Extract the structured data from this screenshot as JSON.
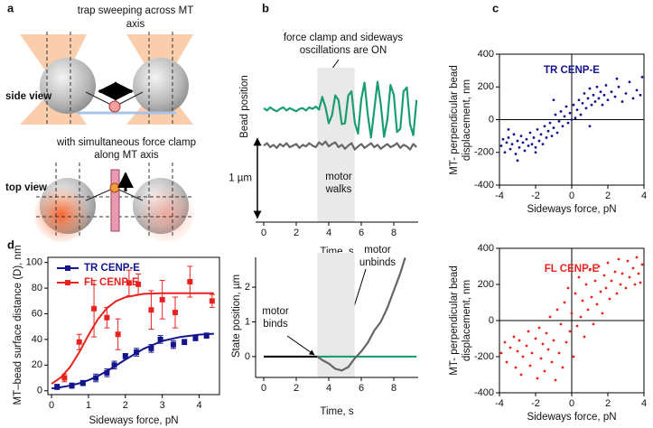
{
  "diagram": {
    "panel_label": "a",
    "caption_top": [
      "trap sweeping across MT",
      "axis"
    ],
    "side_label": "side view",
    "caption_mid": [
      "with simultaneous force clamp",
      "along MT axis"
    ],
    "top_label": "top view"
  },
  "chart_data": [
    {
      "type": "line",
      "panel_label": "b",
      "ylabel": "Bead position",
      "xlabel": "Time, s",
      "annotations": [
        [
          "force clamp and sideways",
          "oscillations are ON"
        ],
        [
          "motor",
          "walks"
        ]
      ],
      "x": [
        0,
        0.2,
        0.4,
        0.6,
        0.8,
        1,
        1.2,
        1.4,
        1.6,
        1.8,
        2,
        2.2,
        2.4,
        2.6,
        2.8,
        3,
        3.2,
        3.4,
        3.6,
        3.8,
        4,
        4.2,
        4.4,
        4.6,
        4.8,
        5,
        5.2,
        5.4,
        5.6,
        5.8,
        6,
        6.2,
        6.4,
        6.6,
        6.8,
        7,
        7.2,
        7.4,
        7.6,
        7.8,
        8,
        8.2,
        8.4,
        8.6,
        8.8,
        9,
        9.2,
        9.4
      ],
      "series": [
        {
          "color": "#1a9e6e",
          "values": [
            0.02,
            -0.01,
            0.03,
            0,
            -0.02,
            0.01,
            0.03,
            -0.01,
            0.02,
            0,
            -0.02,
            0.01,
            0.02,
            -0.01,
            0.03,
            0.01,
            0.04,
            0,
            0.16,
            0.03,
            -0.17,
            -0.07,
            0.18,
            0.12,
            -0.18,
            -0.17,
            0.18,
            0.23,
            -0.16,
            -0.3,
            0.13,
            0.34,
            -0.06,
            -0.35,
            0,
            0.35,
            0.07,
            -0.34,
            -0.13,
            0.31,
            0.19,
            -0.28,
            -0.24,
            0.23,
            0.28,
            -0.18,
            -0.32,
            0.12
          ]
        },
        {
          "color": "#666666",
          "values": [
            -0.45,
            -0.42,
            -0.47,
            -0.44,
            -0.48,
            -0.43,
            -0.46,
            -0.42,
            -0.47,
            -0.45,
            -0.43,
            -0.48,
            -0.44,
            -0.46,
            -0.42,
            -0.45,
            -0.47,
            -0.41,
            -0.44,
            -0.4,
            -0.46,
            -0.43,
            -0.41,
            -0.47,
            -0.44,
            -0.49,
            -0.45,
            -0.42,
            -0.5,
            -0.46,
            -0.43,
            -0.48,
            -0.45,
            -0.42,
            -0.47,
            -0.44,
            -0.49,
            -0.46,
            -0.43,
            -0.47,
            -0.45,
            -0.42,
            -0.48,
            -0.44,
            -0.46,
            -0.5,
            -0.43,
            -0.47
          ]
        }
      ],
      "xlim": [
        -0.5,
        9.5
      ],
      "xticks": [
        0,
        2,
        4,
        6,
        8
      ],
      "ylim": [
        -1.41,
        0.47
      ],
      "highlight_x": [
        3.3,
        5.6
      ],
      "scale_bar": {
        "value": 1,
        "label": "1 µm"
      },
      "frame": "bottom"
    },
    {
      "type": "line",
      "ylabel": "State position, µm",
      "xlabel": "Time, s",
      "annotations": [
        [
          "motor",
          "binds"
        ],
        [
          "motor",
          "unbinds"
        ]
      ],
      "series": [
        {
          "color": "#000000",
          "x": [
            0,
            3.3
          ],
          "values": [
            0,
            0
          ]
        },
        {
          "color": "#1a9e6e",
          "x": [
            3.3,
            9.4
          ],
          "values": [
            0,
            0
          ]
        },
        {
          "color": "#666666",
          "x": [
            3.3,
            3.6,
            4.0,
            4.4,
            4.8,
            5.2,
            5.6,
            6.0,
            6.4,
            6.8,
            7.2,
            7.6,
            8.0,
            8.4,
            8.7
          ],
          "values": [
            0,
            -0.1,
            -0.2,
            -0.35,
            -0.4,
            -0.3,
            -0.05,
            0.15,
            0.4,
            0.75,
            1.0,
            1.4,
            1.9,
            2.4,
            2.85
          ]
        }
      ],
      "xlim": [
        -0.5,
        9.5
      ],
      "xticks": [
        0,
        2,
        4,
        6,
        8
      ],
      "ylim": [
        -0.6,
        2.86
      ],
      "yticks": [
        0,
        1,
        2
      ],
      "highlight_x": [
        3.3,
        5.6
      ],
      "frame": "axes"
    },
    {
      "type": "scatter",
      "panel_label": "c",
      "title": "TR CENP-E",
      "ylabel": [
        "MT- perpendicular bead",
        "displacement, nm"
      ],
      "xlabel": "Sideways force, pN",
      "series": [
        {
          "color": "#14148c",
          "x": [
            -3.9,
            -3.8,
            -3.7,
            -3.6,
            -3.5,
            -3.4,
            -3.3,
            -3.2,
            -3.1,
            -3.0,
            -2.9,
            -2.8,
            -2.7,
            -2.6,
            -2.5,
            -2.4,
            -2.3,
            -2.2,
            -2.1,
            -2.0,
            -1.9,
            -1.8,
            -1.7,
            -1.6,
            -1.5,
            -1.4,
            -1.3,
            -1.2,
            -1.1,
            -1.0,
            -0.9,
            -0.8,
            -0.7,
            -0.6,
            -0.5,
            -0.4,
            -0.3,
            -0.2,
            -0.1,
            0.0,
            0.1,
            0.2,
            0.3,
            0.4,
            0.5,
            0.6,
            0.7,
            0.8,
            0.9,
            1.0,
            1.1,
            1.2,
            1.3,
            1.4,
            1.5,
            1.6,
            1.7,
            1.8,
            1.9,
            2.0,
            2.2,
            2.4,
            2.6,
            2.8,
            3.0,
            3.2,
            3.4,
            3.6,
            3.8,
            3.9,
            -3.0,
            -2.0,
            1.0,
            -1.0,
            2.5,
            -3.5
          ],
          "values": [
            -160,
            -120,
            -200,
            -140,
            -110,
            -180,
            -150,
            -90,
            -210,
            -130,
            -170,
            -100,
            -140,
            -190,
            -120,
            -160,
            -80,
            -150,
            -110,
            -170,
            -60,
            -130,
            -90,
            -150,
            -40,
            -110,
            -70,
            -20,
            -100,
            -50,
            30,
            -80,
            -10,
            50,
            -40,
            20,
            80,
            -20,
            40,
            0,
            90,
            10,
            60,
            120,
            30,
            100,
            160,
            70,
            130,
            190,
            90,
            150,
            110,
            200,
            130,
            170,
            90,
            150,
            210,
            120,
            170,
            140,
            200,
            110,
            160,
            230,
            130,
            180,
            150,
            260,
            -250,
            -200,
            -40,
            120,
            250,
            -60
          ]
        }
      ],
      "xlim": [
        -4,
        4
      ],
      "xticks": [
        -4,
        -2,
        0,
        2,
        4
      ],
      "ylim": [
        -400,
        400
      ],
      "yticks": [
        -400,
        -200,
        0,
        200,
        400
      ],
      "frame": "box",
      "zero_lines": true
    },
    {
      "type": "scatter",
      "title": "FL CENP-E",
      "ylabel": [
        "MT- perpendicular bead",
        "displacement, nm"
      ],
      "xlabel": "Sideways force, pN",
      "series": [
        {
          "color": "#e8231f",
          "x": [
            -3.9,
            -3.7,
            -3.6,
            -3.4,
            -3.2,
            -3.1,
            -3.0,
            -2.9,
            -2.8,
            -2.7,
            -2.5,
            -2.4,
            -2.3,
            -2.2,
            -2.0,
            -1.9,
            -1.8,
            -1.7,
            -1.6,
            -1.5,
            -1.4,
            -1.3,
            -1.2,
            -1.1,
            -1.0,
            -0.9,
            -0.8,
            -0.7,
            -0.6,
            -0.5,
            -0.4,
            -0.3,
            -0.2,
            -0.1,
            0.0,
            0.1,
            0.2,
            0.3,
            0.4,
            0.5,
            0.6,
            0.7,
            0.8,
            0.9,
            1.0,
            1.1,
            1.2,
            1.3,
            1.4,
            1.5,
            1.6,
            1.7,
            1.8,
            1.9,
            2.0,
            2.1,
            2.2,
            2.4,
            2.5,
            2.6,
            2.7,
            2.8,
            3.0,
            3.1,
            3.2,
            3.4,
            3.5,
            3.6,
            3.7,
            3.8,
            3.9
          ],
          "values": [
            -180,
            -120,
            -230,
            -150,
            -90,
            -260,
            -170,
            -110,
            -300,
            -200,
            -140,
            -60,
            -250,
            -180,
            -100,
            -320,
            -40,
            -210,
            -130,
            -280,
            -70,
            -160,
            20,
            -230,
            -110,
            -330,
            60,
            -180,
            -20,
            -260,
            100,
            -120,
            180,
            -60,
            40,
            -200,
            150,
            -30,
            240,
            20,
            110,
            -90,
            200,
            60,
            280,
            130,
            -20,
            220,
            90,
            300,
            160,
            40,
            250,
            180,
            320,
            120,
            220,
            270,
            150,
            340,
            200,
            260,
            180,
            330,
            240,
            290,
            200,
            350,
            260,
            210,
            310
          ]
        }
      ],
      "xlim": [
        -4,
        4
      ],
      "xticks": [
        -4,
        -2,
        0,
        2,
        4
      ],
      "ylim": [
        -400,
        400
      ],
      "yticks": [
        -400,
        -200,
        0,
        200,
        400
      ],
      "frame": "box",
      "zero_lines": true
    },
    {
      "type": "errorbar",
      "panel_label": "d",
      "ylabel": "MT–bead surface distance (D), nm",
      "xlabel": "Sideways force, pN",
      "series": [
        {
          "name": "TR CENP-E",
          "color": "#14148c",
          "x": [
            0.15,
            0.55,
            0.85,
            1.2,
            1.5,
            1.7,
            2.0,
            2.3,
            2.7,
            2.95,
            3.3,
            3.6,
            3.9,
            4.2
          ],
          "values": [
            3,
            4,
            6,
            10,
            14,
            20,
            27,
            30,
            33,
            40,
            36,
            38,
            41,
            43
          ],
          "errors": [
            2,
            2,
            2,
            3,
            3,
            3,
            2,
            3,
            3,
            3,
            3,
            2,
            2,
            2
          ],
          "fit_x": [
            0,
            0.25,
            0.5,
            0.75,
            1,
            1.25,
            1.5,
            1.75,
            2,
            2.5,
            3,
            3.5,
            4,
            4.4
          ],
          "fit_values": [
            1.8,
            2.7,
            4.0,
            5.8,
            8.2,
            11.4,
            15.3,
            19.7,
            24.3,
            32.8,
            38.8,
            42,
            43.7,
            44.4
          ]
        },
        {
          "name": "FL CENP-E",
          "color": "#e8231f",
          "x": [
            0.35,
            0.75,
            1.15,
            1.5,
            1.8,
            2.1,
            2.35,
            2.7,
            3.0,
            3.35,
            3.75,
            4.35
          ],
          "values": [
            10,
            38,
            64,
            57,
            44,
            84,
            83,
            63,
            71,
            61,
            85,
            70
          ],
          "errors": [
            3,
            6,
            22,
            8,
            12,
            10,
            8,
            15,
            15,
            12,
            12,
            5
          ],
          "fit_x": [
            0,
            0.25,
            0.5,
            0.75,
            1,
            1.25,
            1.5,
            1.75,
            2,
            2.5,
            3,
            3.5,
            4,
            4.4
          ],
          "fit_values": [
            5.4,
            10.3,
            18.4,
            30,
            43.4,
            55.5,
            64.4,
            69.9,
            72.9,
            75.6,
            76,
            76,
            76,
            76
          ]
        }
      ],
      "xlim": [
        -0.1,
        4.55
      ],
      "xticks": [
        0,
        1,
        2,
        3,
        4
      ],
      "ylim": [
        -3,
        104
      ],
      "yticks": [
        0,
        20,
        40,
        60,
        80,
        100
      ],
      "frame": "box",
      "legend": "upper left"
    }
  ]
}
